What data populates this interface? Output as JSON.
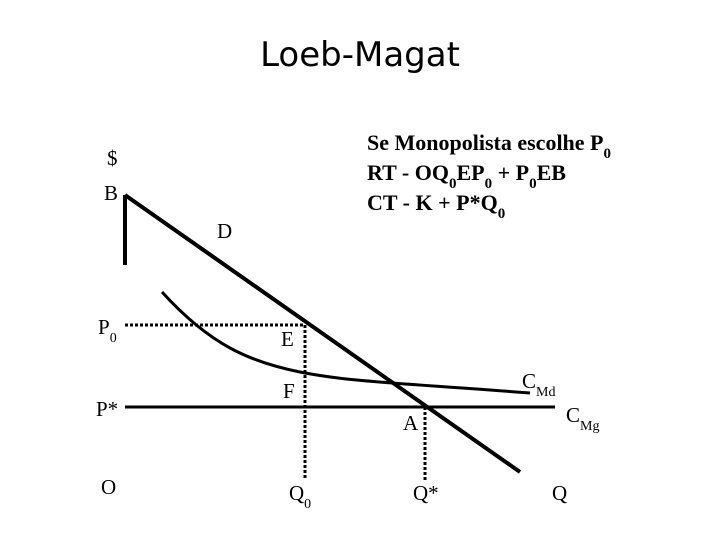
{
  "title": "Loeb-Magat",
  "note": [
    [
      {
        "text": "Se Monopolista escolhe P"
      },
      {
        "text": "0",
        "sub": true
      }
    ],
    [
      {
        "text": "RT - OQ"
      },
      {
        "text": "0",
        "sub": true
      },
      {
        "text": "EP"
      },
      {
        "text": "0",
        "sub": true
      },
      {
        "text": " + P"
      },
      {
        "text": "0",
        "sub": true
      },
      {
        "text": "EB"
      }
    ],
    [
      {
        "text": "CT - K + P*Q"
      },
      {
        "text": "0",
        "sub": true
      }
    ]
  ],
  "labels": {
    "dollar": [
      {
        "text": "$"
      }
    ],
    "b": [
      {
        "text": "B"
      }
    ],
    "d": [
      {
        "text": "D"
      }
    ],
    "p0": [
      {
        "text": "P"
      },
      {
        "text": "0",
        "sub": true
      }
    ],
    "e": [
      {
        "text": "E"
      }
    ],
    "pstar": [
      {
        "text": "P*"
      }
    ],
    "f": [
      {
        "text": "F"
      }
    ],
    "a": [
      {
        "text": "A"
      }
    ],
    "cmd": [
      {
        "text": "C"
      },
      {
        "text": "Md",
        "sub": true
      }
    ],
    "cmg": [
      {
        "text": "C"
      },
      {
        "text": "Mg",
        "sub": true
      }
    ],
    "o": [
      {
        "text": "O"
      }
    ],
    "q0": [
      {
        "text": "Q"
      },
      {
        "text": "0",
        "sub": true
      }
    ],
    "qstar": [
      {
        "text": "Q*"
      }
    ],
    "q": [
      {
        "text": "Q"
      }
    ]
  }
}
